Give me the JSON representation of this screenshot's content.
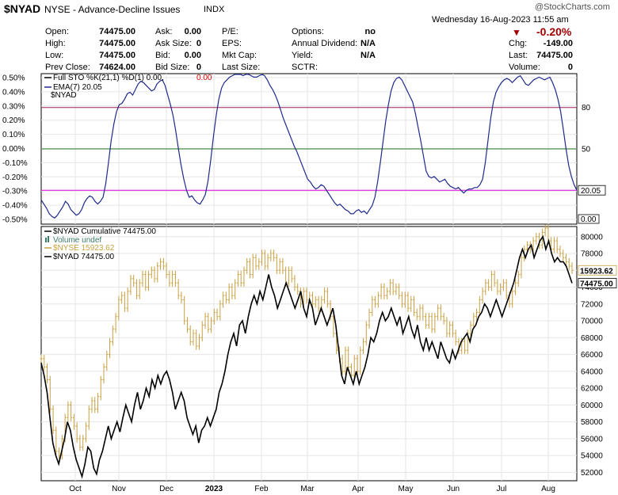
{
  "header": {
    "symbol": "$NYAD",
    "exchange_name": "NYSE - Advance-Decline Issues",
    "market": "INDX",
    "watermark": "@StockCharts.com",
    "datetime": "Wednesday  16-Aug-2023  11:55 am",
    "change_pct": "-0.20%",
    "down_color": "#a00000",
    "quote": [
      {
        "label": "Open:",
        "value": "74475.00"
      },
      {
        "label": "High:",
        "value": "74475.00"
      },
      {
        "label": "Low:",
        "value": "74475.00"
      },
      {
        "label": "Prev Close:",
        "value": "74624.00"
      },
      {
        "label": "Ask:",
        "value": "0.00"
      },
      {
        "label": "Ask Size:",
        "value": "0"
      },
      {
        "label": "Bid:",
        "value": "0.00"
      },
      {
        "label": "Bid Size:",
        "value": "0"
      },
      {
        "label": "P/E:",
        "value": ""
      },
      {
        "label": "EPS:",
        "value": ""
      },
      {
        "label": "Mkt Cap:",
        "value": ""
      },
      {
        "label": "Last Size:",
        "value": ""
      },
      {
        "label": "Options:",
        "value": "no"
      },
      {
        "label": "Annual Dividend:",
        "value": "N/A"
      },
      {
        "label": "Yield:",
        "value": "N/A"
      },
      {
        "label": "SCTR:",
        "value": ""
      },
      {
        "label": "Chg:",
        "value": "-149.00"
      },
      {
        "label": "Last:",
        "value": "74475.00"
      },
      {
        "label": "Volume:",
        "value": "0"
      }
    ]
  },
  "chart_data": [
    {
      "type": "line",
      "panel": "Full Stochastic",
      "legend": [
        {
          "text": "Full STO %K(21,1) %D(1) 0.00,",
          "extra": "0.00",
          "extra_color": "#e00000",
          "color": "#000000"
        },
        {
          "text": "EMA(7) 20.05",
          "color": "#1f2a8c"
        },
        {
          "text": "$NYAD",
          "color": "#000000"
        }
      ],
      "left_ticks": [
        "0.50%",
        "0.40%",
        "0.30%",
        "0.20%",
        "0.10%",
        "0.00%",
        "-0.10%",
        "-0.20%",
        "-0.30%",
        "-0.40%",
        "-0.50%"
      ],
      "right_ticks": [
        "80",
        "50"
      ],
      "reference_lines": [
        {
          "value": 80,
          "color": "#a0205a"
        },
        {
          "value": 50,
          "color": "#207a20"
        },
        {
          "value": 20,
          "color": "#e000e0"
        }
      ],
      "last_value_label": "20.05",
      "bottom_label": "0.00",
      "ylim": [
        -4.5,
        104.5
      ],
      "series": [
        {
          "line_color": "#1f2a8c",
          "values": [
            13,
            10,
            7,
            3,
            1,
            0,
            2,
            5,
            8,
            12,
            10,
            6,
            4,
            2,
            3,
            6,
            11,
            14,
            16,
            15,
            12,
            10,
            12,
            15,
            25,
            40,
            56,
            68,
            77,
            82,
            83,
            86,
            90,
            91,
            89,
            93,
            97,
            99,
            98,
            96,
            94,
            92,
            93,
            97,
            99,
            100,
            96,
            89,
            82,
            74,
            63,
            50,
            38,
            28,
            20,
            15,
            16,
            13,
            11,
            10,
            13,
            17,
            27,
            42,
            59,
            74,
            86,
            94,
            98,
            100,
            102,
            103,
            104,
            104,
            104,
            103,
            104,
            104,
            103,
            102,
            102,
            103,
            104,
            103,
            100,
            96,
            93,
            89,
            84,
            78,
            72,
            67,
            62,
            57,
            52,
            48,
            43,
            38,
            33,
            28,
            26,
            23,
            21,
            22,
            24,
            23,
            20,
            17,
            14,
            11,
            9,
            10,
            8,
            6,
            5,
            3,
            3,
            5,
            6,
            4,
            5,
            3,
            6,
            9,
            15,
            26,
            40,
            55,
            70,
            82,
            92,
            98,
            101,
            102,
            100,
            96,
            92,
            88,
            84,
            76,
            66,
            56,
            45,
            34,
            30,
            29,
            30,
            28,
            26,
            27,
            28,
            25,
            23,
            22,
            21,
            22,
            20,
            18,
            20,
            21,
            21,
            22,
            22,
            24,
            28,
            40,
            56,
            72,
            84,
            91,
            95,
            98,
            100,
            101,
            100,
            98,
            100,
            102,
            103,
            100,
            97,
            96,
            98,
            100,
            101,
            102,
            101,
            100,
            101,
            102,
            98,
            93,
            86,
            77,
            64,
            50,
            38,
            30,
            24,
            20.05
          ]
        }
      ]
    },
    {
      "type": "line",
      "panel": "Price",
      "legend": [
        {
          "text": "$NYAD Cumulative 74475.00",
          "color": "#000000"
        },
        {
          "text": "Volume undef",
          "color": "#3d7a6a"
        },
        {
          "text": "$NYSE 15923.62",
          "color": "#c8a040"
        },
        {
          "text": "$NYAD 74475.00",
          "color": "#000000"
        }
      ],
      "right_ticks": [
        "80000",
        "78000",
        "76000",
        "74000",
        "72000",
        "70000",
        "68000",
        "66000",
        "64000",
        "62000",
        "60000",
        "58000",
        "56000",
        "54000",
        "52000"
      ],
      "x_labels": [
        "Oct",
        "Nov",
        "Dec",
        "2023",
        "Feb",
        "Mar",
        "Apr",
        "May",
        "Jun",
        "Jul",
        "Aug"
      ],
      "ylim": [
        51000,
        81200
      ],
      "last_labels": [
        {
          "text": "15923.62",
          "series": "$NYSE"
        },
        {
          "text": "74475.00",
          "series": "$NYAD"
        }
      ],
      "series": [
        {
          "name": "$NYAD",
          "color": "#000000",
          "values": [
            65000,
            63500,
            61500,
            58500,
            55500,
            54000,
            53000,
            54500,
            56000,
            58000,
            57000,
            55000,
            53500,
            52500,
            51500,
            53000,
            55000,
            54500,
            52500,
            51800,
            53500,
            54500,
            56000,
            57500,
            56000,
            57000,
            58000,
            56800,
            58500,
            60000,
            59000,
            58000,
            60000,
            61500,
            59500,
            60500,
            62000,
            61000,
            63000,
            62000,
            63500,
            62500,
            63500,
            64000,
            63000,
            61500,
            59500,
            60500,
            61500,
            60500,
            58500,
            57500,
            56500,
            57500,
            55500,
            57000,
            57500,
            58500,
            57500,
            58500,
            59500,
            61500,
            62500,
            64000,
            66000,
            67500,
            68500,
            67000,
            69500,
            70000,
            68500,
            70500,
            72000,
            73000,
            72000,
            73500,
            72500,
            74000,
            75500,
            74000,
            73000,
            71500,
            72500,
            73500,
            74500,
            73500,
            72500,
            71500,
            72500,
            73500,
            71500,
            70500,
            72500,
            71500,
            69500,
            70500,
            71500,
            70500,
            69500,
            70500,
            71500,
            69500,
            66500,
            63500,
            62500,
            64500,
            63500,
            62500,
            64000,
            62500,
            63500,
            64500,
            66000,
            68000,
            67500,
            68500,
            70000,
            71000,
            70000,
            70500,
            71500,
            70500,
            69500,
            70500,
            68500,
            69500,
            70500,
            69000,
            68000,
            69500,
            67500,
            66500,
            68000,
            66500,
            67500,
            66500,
            65500,
            67500,
            66500,
            65500,
            65000,
            66500,
            65500,
            66500,
            67500,
            68000,
            68500,
            67500,
            69000,
            69500,
            70500,
            71000,
            72000,
            71500,
            70500,
            71500,
            72500,
            71500,
            70500,
            71500,
            72500,
            73500,
            74500,
            76000,
            77500,
            78500,
            77500,
            78500,
            79000,
            77500,
            78500,
            79500,
            80000,
            78500,
            79500,
            78000,
            77000,
            77500,
            77000,
            77000,
            76500,
            75500,
            74475
          ]
        },
        {
          "name": "$NYSE",
          "color": "#c8a040",
          "values": [
            65500,
            64500,
            63000,
            59500,
            57000,
            54500,
            54000,
            56000,
            58500,
            60000,
            58500,
            57500,
            56000,
            55000,
            56000,
            57500,
            59500,
            60500,
            59500,
            61000,
            63000,
            64500,
            66000,
            67500,
            69000,
            70500,
            72500,
            73000,
            71500,
            73500,
            75000,
            74500,
            73000,
            74500,
            75500,
            74000,
            75500,
            76000,
            75000,
            76500,
            77000,
            76500,
            75500,
            74500,
            75500,
            74500,
            73000,
            72500,
            70000,
            69000,
            67500,
            68500,
            67000,
            68000,
            69500,
            70500,
            69000,
            70000,
            71000,
            70500,
            72000,
            73000,
            72500,
            74000,
            73000,
            74500,
            75500,
            74500,
            76000,
            77000,
            75500,
            77500,
            76500,
            77000,
            78000,
            76500,
            77500,
            78000,
            77500,
            76000,
            77000,
            76000,
            74500,
            76000,
            75000,
            74000,
            73500,
            72000,
            73500,
            72500,
            73000,
            72000,
            72500,
            71500,
            72500,
            73500,
            72000,
            70500,
            68500,
            66500,
            65500,
            64000,
            66500,
            64500,
            63500,
            65500,
            64000,
            66500,
            67500,
            69500,
            71000,
            72500,
            72000,
            73000,
            74000,
            73000,
            73500,
            74500,
            73500,
            74000,
            73000,
            72000,
            73000,
            71500,
            72500,
            71000,
            70500,
            71500,
            70500,
            69500,
            70500,
            69000,
            70500,
            71500,
            70500,
            70000,
            68500,
            69500,
            68500,
            67500,
            66500,
            67500,
            66500,
            68500,
            69500,
            70500,
            71000,
            72500,
            73500,
            74500,
            74000,
            75500,
            74500,
            73500,
            74000,
            74500,
            73000,
            72000,
            73500,
            74500,
            75500,
            77500,
            78500,
            79000,
            78500,
            79500,
            80000,
            79000,
            80500,
            81000,
            79500,
            78500,
            79500,
            78500,
            78000,
            77500,
            77000,
            76500,
            76000,
            16000
          ]
        }
      ]
    }
  ]
}
